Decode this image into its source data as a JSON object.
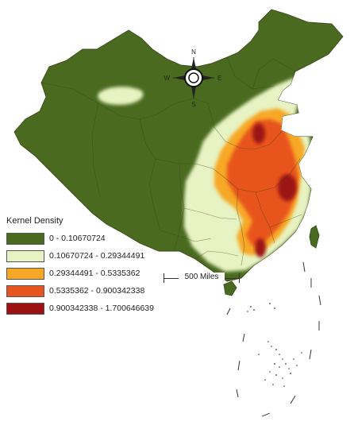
{
  "legend": {
    "title": "Kernel Density",
    "classes": [
      {
        "label": "0 - 0.10670724",
        "color": "#4a6b1f"
      },
      {
        "label": "0.10670724 - 0.29344491",
        "color": "#e7f3c2"
      },
      {
        "label": "0.29344491 - 0.5335362",
        "color": "#f7a827"
      },
      {
        "label": "0.5335362 - 0.900342338",
        "color": "#e8541e"
      },
      {
        "label": "0.900342338 - 1.700646639",
        "color": "#9c1212"
      }
    ]
  },
  "scale_bar": {
    "label": "500 Miles"
  },
  "compass": {
    "north": "N",
    "south": "S",
    "east": "E",
    "west": "W"
  },
  "colors": {
    "base": "#4a6b1f",
    "low": "#e7f3c2",
    "medium": "#f7a827",
    "high": "#e8541e",
    "very_high": "#9c1212"
  }
}
